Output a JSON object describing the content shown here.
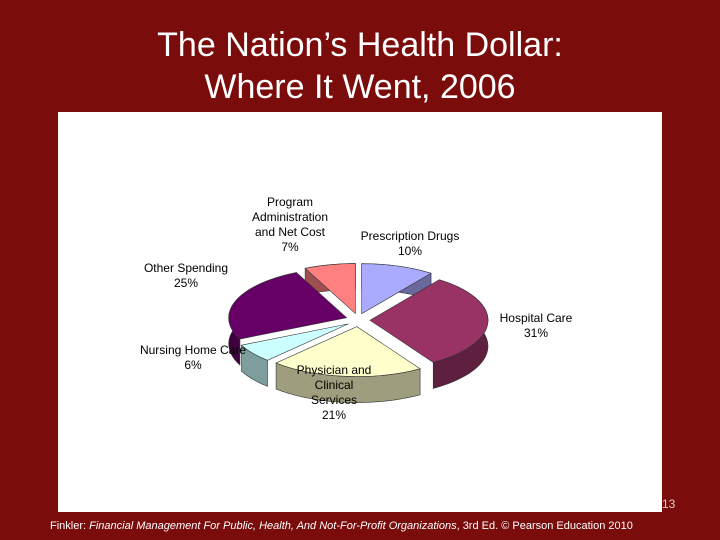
{
  "slide": {
    "title_line1": "The Nation’s Health Dollar:",
    "title_line2": "Where It Went, 2006",
    "page_number": "13",
    "footer": {
      "prefix": "Finkler: ",
      "book": "Financial Management For Public, Health, And Not-For-Profit Organizations",
      "suffix": ", 3rd Ed. © Pearson Education 2010"
    }
  },
  "chart_data": {
    "type": "pie",
    "title": "",
    "labels": [
      "Prescription Drugs",
      "Hospital Care",
      "Physician and Clinical Services",
      "Nursing Home Care",
      "Other Spending",
      "Program Administration and Net Cost"
    ],
    "values": [
      10,
      31,
      21,
      6,
      25,
      7
    ],
    "value_labels": [
      "10%",
      "31%",
      "21%",
      "6%",
      "25%",
      "7%"
    ],
    "colors": [
      "#aaaaff",
      "#993366",
      "#ffffcc",
      "#ccffff",
      "#660066",
      "#ff8080"
    ],
    "exploded": true,
    "three_d": true,
    "legend": "none"
  }
}
